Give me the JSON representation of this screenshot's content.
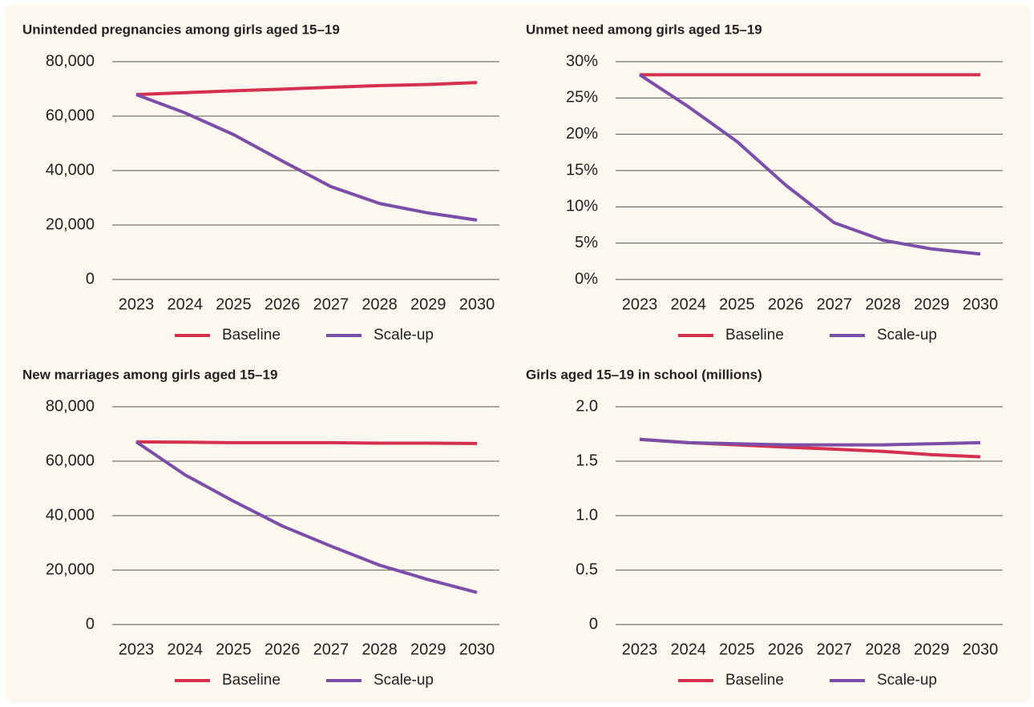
{
  "chart_data": [
    {
      "type": "line",
      "title": "Unintended pregnancies among girls aged 15–19",
      "categories": [
        "2023",
        "2024",
        "2025",
        "2026",
        "2027",
        "2028",
        "2029",
        "2030"
      ],
      "series": [
        {
          "name": "Baseline",
          "color": "#d6304f",
          "values": [
            67900,
            68600,
            69300,
            69900,
            70600,
            71200,
            71600,
            72300
          ]
        },
        {
          "name": "Scale-up",
          "color": "#7b4fa8",
          "values": [
            67900,
            61200,
            53200,
            43500,
            34100,
            27900,
            24400,
            21800
          ]
        }
      ],
      "ylim": [
        0,
        80000
      ],
      "yticks": [
        0,
        {
          "value": 20000,
          "label": "20,000"
        },
        {
          "value": 40000,
          "label": "40,000"
        },
        {
          "value": 60000,
          "label": "60,000"
        },
        {
          "value": 80000,
          "label": "80,000"
        }
      ],
      "grid": true
    },
    {
      "type": "line",
      "title": "Unmet need among girls aged 15–19",
      "categories": [
        "2023",
        "2024",
        "2025",
        "2026",
        "2027",
        "2028",
        "2029",
        "2030"
      ],
      "series": [
        {
          "name": "Baseline",
          "color": "#d6304f",
          "values": [
            28.2,
            28.2,
            28.2,
            28.2,
            28.2,
            28.2,
            28.2,
            28.2
          ]
        },
        {
          "name": "Scale-up",
          "color": "#7b4fa8",
          "values": [
            28.2,
            23.8,
            19.0,
            13.0,
            7.8,
            5.4,
            4.2,
            3.5
          ]
        }
      ],
      "ylim": [
        0,
        30
      ],
      "yticks": [
        {
          "value": 0,
          "label": "0%"
        },
        {
          "value": 5,
          "label": "5%"
        },
        {
          "value": 10,
          "label": "10%"
        },
        {
          "value": 15,
          "label": "15%"
        },
        {
          "value": 20,
          "label": "20%"
        },
        {
          "value": 25,
          "label": "25%"
        },
        {
          "value": 30,
          "label": "30%"
        }
      ],
      "grid": true
    },
    {
      "type": "line",
      "title": "New marriages among girls aged 15–19",
      "categories": [
        "2023",
        "2024",
        "2025",
        "2026",
        "2027",
        "2028",
        "2029",
        "2030"
      ],
      "series": [
        {
          "name": "Baseline",
          "color": "#d6304f",
          "values": [
            67100,
            67000,
            66800,
            66800,
            66800,
            66600,
            66600,
            66500
          ]
        },
        {
          "name": "Scale-up",
          "color": "#7b4fa8",
          "values": [
            67100,
            55000,
            45300,
            36200,
            28800,
            21800,
            16500,
            11800
          ]
        }
      ],
      "ylim": [
        0,
        80000
      ],
      "yticks": [
        0,
        {
          "value": 20000,
          "label": "20,000"
        },
        {
          "value": 40000,
          "label": "40,000"
        },
        {
          "value": 60000,
          "label": "60,000"
        },
        {
          "value": 80000,
          "label": "80,000"
        }
      ],
      "grid": true
    },
    {
      "type": "line",
      "title": "Girls aged 15–19 in school (millions)",
      "categories": [
        "2023",
        "2024",
        "2025",
        "2026",
        "2027",
        "2028",
        "2029",
        "2030"
      ],
      "series": [
        {
          "name": "Baseline",
          "color": "#d6304f",
          "values": [
            1.7,
            1.67,
            1.65,
            1.63,
            1.61,
            1.59,
            1.56,
            1.54
          ]
        },
        {
          "name": "Scale-up",
          "color": "#7b4fa8",
          "values": [
            1.7,
            1.67,
            1.66,
            1.65,
            1.65,
            1.65,
            1.66,
            1.67
          ]
        }
      ],
      "ylim": [
        0,
        2
      ],
      "yticks": [
        0,
        0.5,
        {
          "value": 1,
          "label": "1.0"
        },
        1.5,
        {
          "value": 2,
          "label": "2.0"
        }
      ],
      "grid": true
    }
  ]
}
